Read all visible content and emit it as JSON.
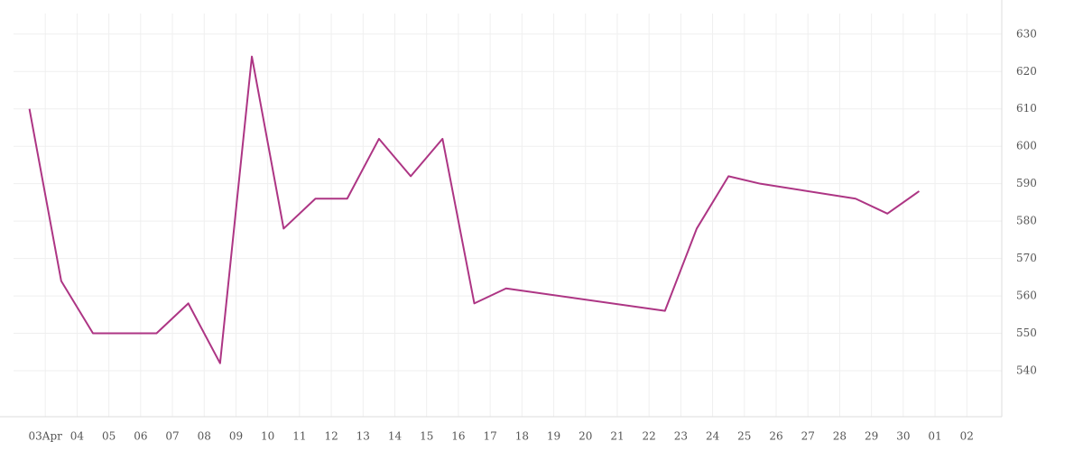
{
  "chart_data": {
    "type": "line",
    "x": [
      2.5,
      3.5,
      4.5,
      5.5,
      6.5,
      7.5,
      8.5,
      9.5,
      10.5,
      11.5,
      12.5,
      13.5,
      14.5,
      15.5,
      16.5,
      17.5,
      22.5,
      23.5,
      24.5,
      25.5,
      28.5,
      29.5,
      30.5
    ],
    "series": [
      {
        "color": "#ad3584",
        "values": [
          610,
          564,
          550,
          550,
          550,
          558,
          542,
          624,
          578,
          586,
          586,
          602,
          592,
          602,
          558,
          562,
          556,
          578,
          592,
          590,
          586,
          582,
          588
        ]
      }
    ],
    "xlim": [
      2,
      33.1
    ],
    "xticks": [
      {
        "value": 3,
        "label": "03Apr"
      },
      {
        "value": 4,
        "label": "04"
      },
      {
        "value": 5,
        "label": "05"
      },
      {
        "value": 6,
        "label": "06"
      },
      {
        "value": 7,
        "label": "07"
      },
      {
        "value": 8,
        "label": "08"
      },
      {
        "value": 9,
        "label": "09"
      },
      10,
      11,
      12,
      13,
      14,
      15,
      16,
      17,
      18,
      19,
      20,
      21,
      22,
      23,
      24,
      25,
      26,
      27,
      28,
      29,
      30,
      {
        "value": 31,
        "label": "01"
      },
      {
        "value": 32,
        "label": "02"
      }
    ],
    "ylim": [
      527.7,
      635.5
    ],
    "yticks": [
      540,
      550,
      560,
      570,
      580,
      590,
      600,
      610,
      620,
      630
    ],
    "grid": true
  }
}
